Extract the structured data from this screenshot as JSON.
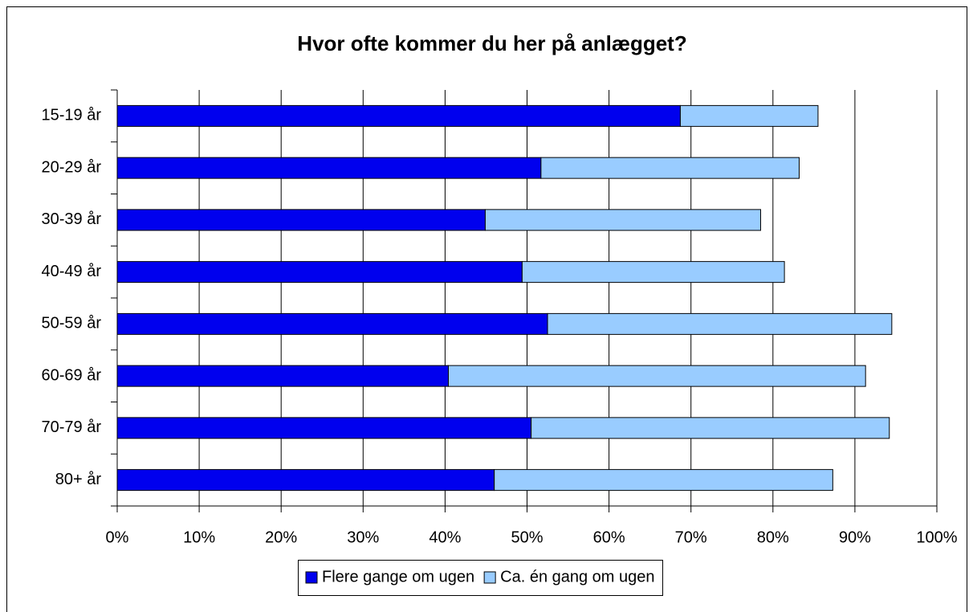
{
  "chart_data": {
    "type": "stacked-barh",
    "title": "Hvor ofte kommer du her på anlægget?",
    "categories": [
      "15-19 år",
      "20-29 år",
      "30-39 år",
      "40-49 år",
      "50-59 år",
      "60-69 år",
      "70-79 år",
      "80+ år"
    ],
    "series": [
      {
        "name": "Flere gange om ugen",
        "color": "#0000ee",
        "values": [
          68.7,
          51.7,
          44.9,
          49.4,
          52.5,
          40.4,
          50.5,
          46.0
        ]
      },
      {
        "name": "Ca. én gang om ugen",
        "color": "#99ccff",
        "values": [
          16.8,
          31.5,
          33.6,
          32.0,
          42.0,
          50.9,
          43.7,
          41.3
        ]
      }
    ],
    "xlim": [
      0,
      100
    ],
    "xticks": [
      {
        "value": 0,
        "label": "0%"
      },
      {
        "value": 10,
        "label": "10%"
      },
      {
        "value": 20,
        "label": "20%"
      },
      {
        "value": 30,
        "label": "30%"
      },
      {
        "value": 40,
        "label": "40%"
      },
      {
        "value": 50,
        "label": "50%"
      },
      {
        "value": 60,
        "label": "60%"
      },
      {
        "value": 70,
        "label": "70%"
      },
      {
        "value": 80,
        "label": "80%"
      },
      {
        "value": 90,
        "label": "90%"
      },
      {
        "value": 100,
        "label": "100%"
      }
    ],
    "grid": true,
    "legend": "bottom"
  }
}
